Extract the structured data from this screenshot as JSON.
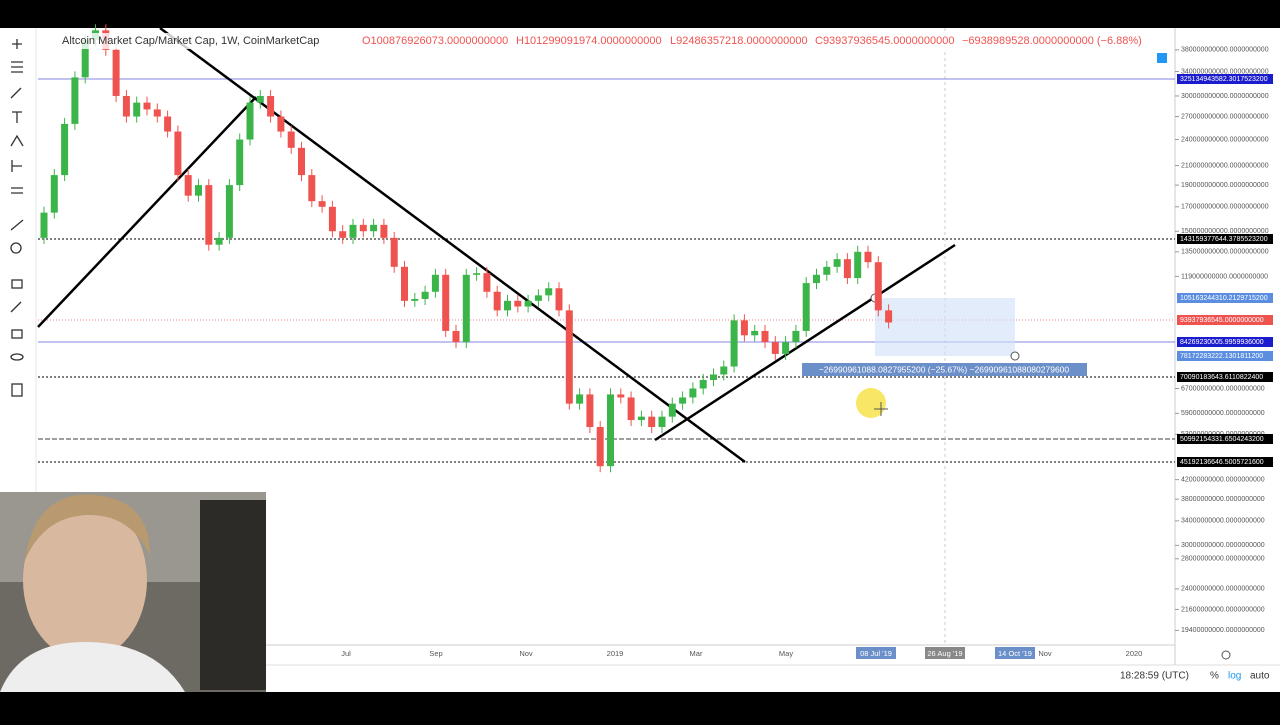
{
  "header": {
    "symbol": "Altcoin Market Cap/Market Cap, 1W, CoinMarketCap",
    "open": "O100876926073.0000000000",
    "high": "H101299091974.0000000000",
    "low": "L92486357218.0000000000",
    "close": "C93937936545.0000000000",
    "change": "−6938989528.0000000000 (−6.88%)"
  },
  "price_scale": {
    "log": true,
    "ylim": [
      18000000000,
      425000000000
    ],
    "yticks": [
      {
        "value": 380000000000,
        "label": "380000000000.0000000000"
      },
      {
        "value": 340000000000,
        "label": "340000000000.0000000000"
      },
      {
        "value": 300000000000,
        "label": "300000000000.0000000000"
      },
      {
        "value": 270000000000,
        "label": "270000000000.0000000000"
      },
      {
        "value": 240000000000,
        "label": "240000000000.0000000000"
      },
      {
        "value": 210000000000,
        "label": "210000000000.0000000000"
      },
      {
        "value": 190000000000,
        "label": "190000000000.0000000000"
      },
      {
        "value": 170000000000,
        "label": "170000000000.0000000000"
      },
      {
        "value": 150000000000,
        "label": "150000000000.0000000000"
      },
      {
        "value": 135000000000,
        "label": "135000000000.0000000000"
      },
      {
        "value": 119000000000,
        "label": "119000000000.0000000000"
      },
      {
        "value": 67000000000,
        "label": "67000000000.0000000000"
      },
      {
        "value": 59000000000,
        "label": "59000000000.0000000000"
      },
      {
        "value": 53000000000,
        "label": "53000000000.0000000000"
      },
      {
        "value": 42000000000,
        "label": "42000000000.0000000000"
      },
      {
        "value": 38000000000,
        "label": "38000000000.0000000000"
      },
      {
        "value": 34000000000,
        "label": "34000000000.0000000000"
      },
      {
        "value": 30000000000,
        "label": "30000000000.0000000000"
      },
      {
        "value": 28000000000,
        "label": "28000000000.0000000000"
      },
      {
        "value": 24000000000,
        "label": "24000000000.0000000000"
      },
      {
        "value": 21600000000,
        "label": "21600000000.0000000000"
      },
      {
        "value": 19400000000,
        "label": "19400000000.0000000000"
      }
    ]
  },
  "price_labels": [
    "325134943582.3017523200",
    "143159377644.3785523200",
    "105163244310.2129715200",
    "93937936545.0000000000",
    "84269230005.9959936000",
    "78172283222.1301811200",
    "70090183643.6110822400",
    "50992154331.6504243200",
    "45192136646.5005721600"
  ],
  "measure_label": "−26990961088.0827955200 (−25.67%) −26990961088080279600",
  "time_labels": [
    "Jul",
    "Sep",
    "Nov",
    "2019",
    "Mar",
    "May",
    "08 Jul '19",
    "26 Aug '19",
    "14 Oct '19",
    "Nov",
    "2020"
  ],
  "footer": {
    "time": "18:28:59 (UTC)",
    "percent": "%",
    "log": "log",
    "auto": "auto"
  },
  "candles": {
    "up_color": "#3bb54a",
    "down_color": "#ef5350",
    "open": [
      145000000000,
      165000000000,
      200000000000,
      260000000000,
      330000000000,
      400000000000,
      420000000000,
      380000000000,
      300000000000,
      270000000000,
      290000000000,
      280000000000,
      270000000000,
      250000000000,
      200000000000,
      180000000000,
      190000000000,
      140000000000,
      145000000000,
      190000000000,
      240000000000,
      290000000000,
      300000000000,
      270000000000,
      250000000000,
      230000000000,
      200000000000,
      175000000000,
      170000000000,
      150000000000,
      145000000000,
      155000000000,
      150000000000,
      155000000000,
      145000000000,
      125000000000,
      105000000000,
      106000000000,
      110000000000,
      120000000000,
      90000000000,
      85000000000,
      120000000000,
      121000000000,
      110000000000,
      100000000000,
      105000000000,
      102000000000,
      105000000000,
      108000000000,
      112000000000,
      100000000000,
      62000000000,
      65000000000,
      55000000000,
      45000000000,
      65000000000,
      64000000000,
      57000000000,
      58000000000,
      55000000000,
      58000000000,
      62000000000,
      64000000000,
      67000000000,
      70000000000,
      72000000000,
      75000000000,
      95000000000,
      88000000000,
      90000000000,
      85000000000,
      80000000000,
      85000000000,
      90000000000,
      115000000000,
      120000000000,
      125000000000,
      130000000000,
      118000000000,
      135000000000,
      128000000000,
      100000000000
    ],
    "close": [
      165000000000,
      200000000000,
      260000000000,
      330000000000,
      400000000000,
      420000000000,
      380000000000,
      300000000000,
      270000000000,
      290000000000,
      280000000000,
      270000000000,
      250000000000,
      200000000000,
      180000000000,
      190000000000,
      140000000000,
      145000000000,
      190000000000,
      240000000000,
      290000000000,
      300000000000,
      270000000000,
      250000000000,
      230000000000,
      200000000000,
      175000000000,
      170000000000,
      150000000000,
      145000000000,
      155000000000,
      150000000000,
      155000000000,
      145000000000,
      125000000000,
      105000000000,
      106000000000,
      110000000000,
      120000000000,
      90000000000,
      85000000000,
      120000000000,
      121000000000,
      110000000000,
      100000000000,
      105000000000,
      102000000000,
      105000000000,
      108000000000,
      112000000000,
      100000000000,
      62000000000,
      65000000000,
      55000000000,
      45000000000,
      65000000000,
      64000000000,
      57000000000,
      58000000000,
      55000000000,
      58000000000,
      62000000000,
      64000000000,
      67000000000,
      70000000000,
      72000000000,
      75000000000,
      95000000000,
      88000000000,
      90000000000,
      85000000000,
      80000000000,
      85000000000,
      90000000000,
      115000000000,
      120000000000,
      125000000000,
      130000000000,
      118000000000,
      135000000000,
      128000000000,
      100000000000,
      94000000000
    ]
  }
}
